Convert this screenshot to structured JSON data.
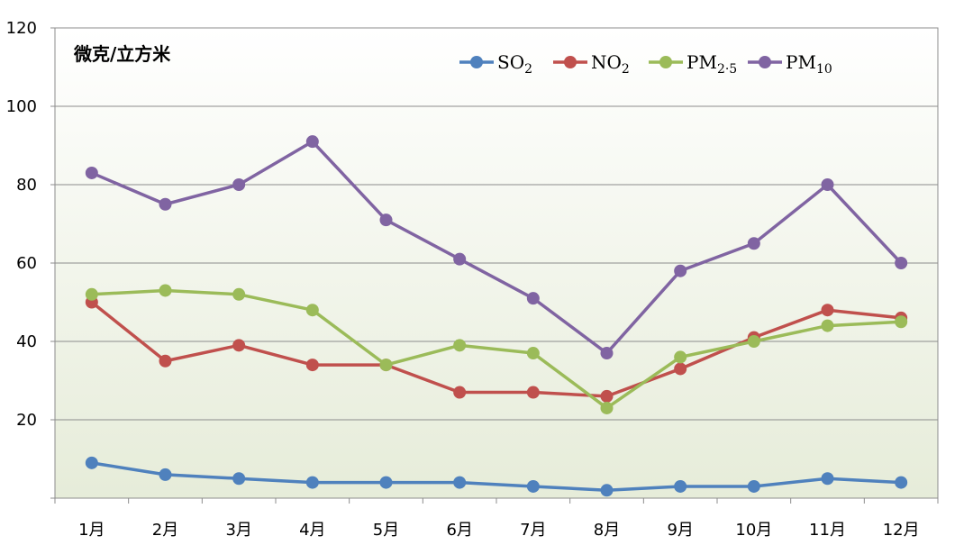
{
  "chart_data": {
    "type": "line",
    "unit_label": "微克/立方米",
    "categories": [
      "1月",
      "2月",
      "3月",
      "4月",
      "5月",
      "6月",
      "7月",
      "8月",
      "9月",
      "10月",
      "11月",
      "12月"
    ],
    "y_ticks": [
      "20",
      "40",
      "60",
      "80",
      "100",
      "120"
    ],
    "ylim": [
      0,
      120
    ],
    "grid": true,
    "legend_position": "top",
    "series": [
      {
        "name": "SO",
        "sub": "2",
        "color": "#4F81BD",
        "values": [
          9,
          6,
          5,
          4,
          4,
          4,
          3,
          2,
          3,
          3,
          5,
          4
        ]
      },
      {
        "name": "NO",
        "sub": "2",
        "color": "#C0504D",
        "values": [
          50,
          35,
          39,
          34,
          34,
          27,
          27,
          26,
          33,
          41,
          48,
          46
        ]
      },
      {
        "name": "PM",
        "sub": "2·5",
        "color": "#9BBB59",
        "values": [
          52,
          53,
          52,
          48,
          34,
          39,
          37,
          23,
          36,
          40,
          44,
          45
        ]
      },
      {
        "name": "PM",
        "sub": "10",
        "color": "#8064A2",
        "values": [
          83,
          75,
          80,
          91,
          71,
          61,
          51,
          37,
          58,
          65,
          80,
          60
        ]
      }
    ]
  }
}
